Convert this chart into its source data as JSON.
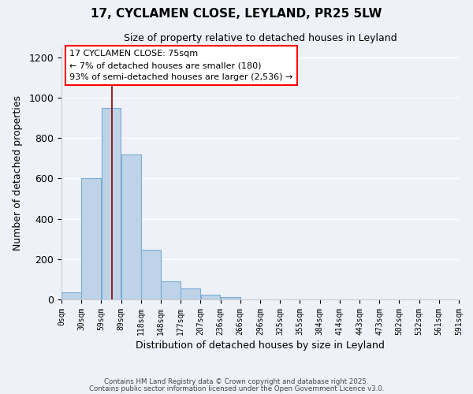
{
  "title": "17, CYCLAMEN CLOSE, LEYLAND, PR25 5LW",
  "subtitle": "Size of property relative to detached houses in Leyland",
  "xlabel": "Distribution of detached houses by size in Leyland",
  "ylabel": "Number of detached properties",
  "bin_starts": [
    0,
    29.5,
    59,
    88.5,
    118,
    147.5,
    177,
    206.5,
    236,
    265.5,
    295,
    324.5,
    354,
    383.5,
    413,
    442.5,
    472,
    501.5,
    531,
    560.5
  ],
  "bin_width": 29.5,
  "bar_heights": [
    35,
    600,
    950,
    720,
    245,
    90,
    55,
    25,
    10,
    0,
    0,
    0,
    0,
    0,
    0,
    0,
    0,
    0,
    0,
    0
  ],
  "bar_color": "#bed3e8",
  "bar_edge_color": "#7aadd4",
  "tick_labels": [
    "0sqm",
    "30sqm",
    "59sqm",
    "89sqm",
    "118sqm",
    "148sqm",
    "177sqm",
    "207sqm",
    "236sqm",
    "266sqm",
    "296sqm",
    "325sqm",
    "355sqm",
    "384sqm",
    "414sqm",
    "443sqm",
    "473sqm",
    "502sqm",
    "532sqm",
    "561sqm",
    "591sqm"
  ],
  "tick_positions": [
    0,
    29.5,
    59,
    88.5,
    118,
    147.5,
    177,
    206.5,
    236,
    265.5,
    295,
    324.5,
    354,
    383.5,
    413,
    442.5,
    472,
    501.5,
    531,
    560.5,
    590
  ],
  "xlim": [
    0,
    590
  ],
  "ylim": [
    0,
    1250
  ],
  "yticks": [
    0,
    200,
    400,
    600,
    800,
    1000,
    1200
  ],
  "red_line_x": 75,
  "annotation_title": "17 CYCLAMEN CLOSE: 75sqm",
  "annotation_line1": "← 7% of detached houses are smaller (180)",
  "annotation_line2": "93% of semi-detached houses are larger (2,536) →",
  "footer1": "Contains HM Land Registry data © Crown copyright and database right 2025.",
  "footer2": "Contains public sector information licensed under the Open Government Licence v3.0.",
  "background_color": "#eef2f8",
  "plot_bg_color": "#eef2f8",
  "grid_color": "#ffffff",
  "figsize": [
    6.0,
    5.0
  ],
  "dpi": 100
}
